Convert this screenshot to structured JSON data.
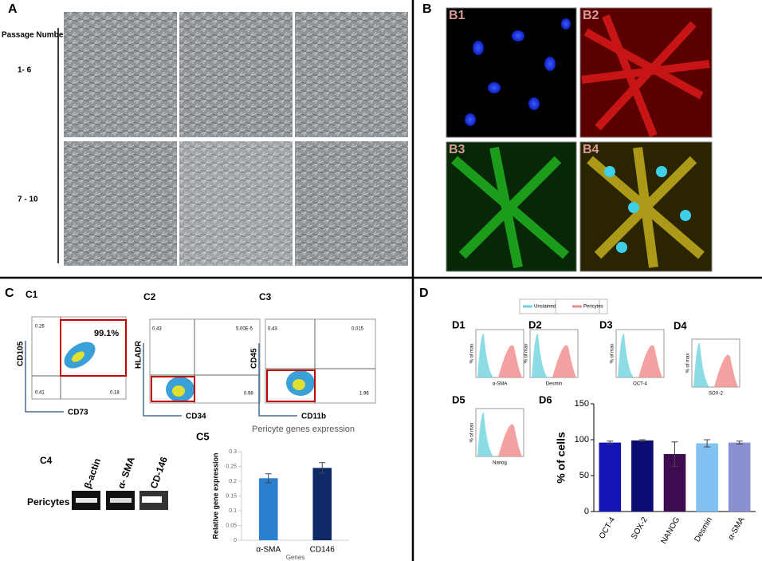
{
  "panel_a": {
    "label": "A",
    "row_header": "Passage Number",
    "rows": [
      "1- 6",
      "7 - 10"
    ]
  },
  "panel_b": {
    "label": "B",
    "images": [
      "B1",
      "B2",
      "B3",
      "B4"
    ]
  },
  "panel_c": {
    "label": "C",
    "flow": [
      {
        "panel": "C1",
        "x_label": "CD73",
        "y_label": "CD105",
        "gate": "99.1%",
        "quadrants": [
          "0.26",
          "0.41",
          "0.18"
        ]
      },
      {
        "panel": "C2",
        "x_label": "CD34",
        "y_label": "HLADR",
        "quadrants": [
          "0.43",
          "5.00E-5",
          "0.98"
        ]
      },
      {
        "panel": "C3",
        "x_label": "CD11b",
        "y_label": "CD45",
        "quadrants": [
          "0.43",
          "0.015",
          "1.96"
        ]
      }
    ],
    "gel": {
      "panel": "C4",
      "row": "Pericytes",
      "lanes": [
        "β-actin",
        "α- SMA",
        "CD-146"
      ]
    },
    "c5": {
      "panel": "C5",
      "type": "bar",
      "title": "Pericyte genes expression",
      "y_label": "Relative gene expression",
      "x_label": "Genes",
      "categories": [
        "α-SMA",
        "CD146"
      ],
      "values": [
        0.21,
        0.245
      ],
      "errors": [
        0.015,
        0.018
      ],
      "colors": [
        "#2a7fd0",
        "#0d2a66"
      ],
      "ylim": [
        0,
        0.3
      ],
      "yticks": [
        0,
        0.05,
        0.1,
        0.15,
        0.2,
        0.25,
        0.3
      ]
    }
  },
  "panel_d": {
    "label": "D",
    "legend": [
      {
        "name": "Unstained",
        "color": "#6fd3e0"
      },
      {
        "name": "Pericytes",
        "color": "#f08a8a"
      }
    ],
    "histograms": [
      {
        "panel": "D1",
        "y_label": "% of max",
        "x_label": "α-SMA"
      },
      {
        "panel": "D2",
        "y_label": "% of max",
        "x_label": "Desmin"
      },
      {
        "panel": "D3",
        "y_label": "% of max",
        "x_label": "OCT-4"
      },
      {
        "panel": "D4",
        "y_label": "% of max",
        "x_label": "SOX-2"
      },
      {
        "panel": "D5",
        "y_label": "% of max",
        "x_label": "Nanog"
      }
    ],
    "d6": {
      "panel": "D6",
      "type": "bar",
      "y_label": "% of cells",
      "categories": [
        "OCT-4",
        "SOX-2",
        "NANOG",
        "Desmin",
        "α-SMA"
      ],
      "values": [
        96,
        99,
        80,
        95,
        96
      ],
      "errors": [
        2,
        1,
        17,
        5,
        2
      ],
      "colors": [
        "#1414b4",
        "#0c0c72",
        "#3e0a50",
        "#82c2f2",
        "#8a90d2"
      ],
      "ylim": [
        0,
        150
      ],
      "yticks": [
        0,
        50,
        100,
        150
      ]
    }
  }
}
